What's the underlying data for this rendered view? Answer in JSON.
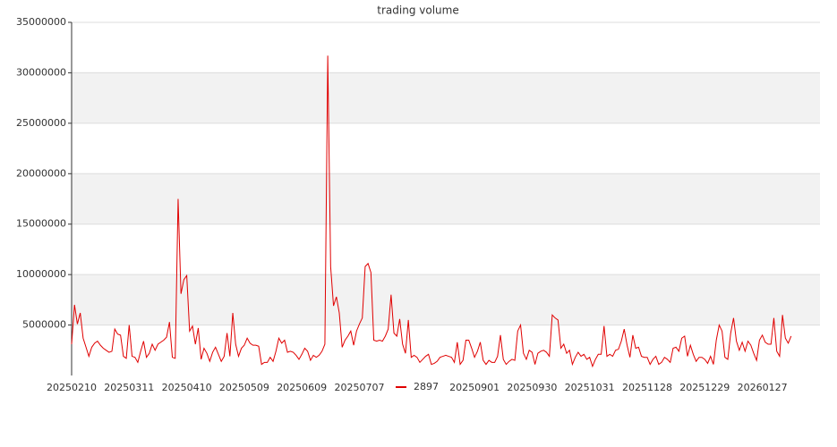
{
  "chart_data": {
    "type": "line",
    "title": "trading volume",
    "categories": [
      "20250210",
      null,
      null,
      null,
      null,
      null,
      null,
      null,
      null,
      null,
      null,
      null,
      null,
      null,
      null,
      null,
      null,
      null,
      null,
      null,
      "20250311",
      null,
      null,
      null,
      null,
      null,
      null,
      null,
      null,
      null,
      null,
      null,
      null,
      null,
      null,
      null,
      null,
      null,
      null,
      null,
      "20250410",
      null,
      null,
      null,
      null,
      null,
      null,
      null,
      null,
      null,
      null,
      null,
      null,
      null,
      null,
      null,
      null,
      null,
      null,
      null,
      "20250509",
      null,
      null,
      null,
      null,
      null,
      null,
      null,
      null,
      null,
      null,
      null,
      null,
      null,
      null,
      null,
      null,
      null,
      null,
      null,
      "20250609",
      null,
      null,
      null,
      null,
      null,
      null,
      null,
      null,
      null,
      null,
      null,
      null,
      null,
      null,
      null,
      null,
      null,
      null,
      null,
      "20250707",
      null,
      null,
      null,
      null,
      null,
      null,
      null,
      null,
      null,
      null,
      null,
      null,
      null,
      null,
      null,
      null,
      null,
      null,
      null,
      null,
      null,
      null,
      null,
      null,
      null,
      null,
      null,
      null,
      null,
      null,
      null,
      null,
      null,
      null,
      null,
      null,
      null,
      null,
      null,
      "20250901",
      null,
      null,
      null,
      null,
      null,
      null,
      null,
      null,
      null,
      null,
      null,
      null,
      null,
      null,
      null,
      null,
      null,
      null,
      null,
      "20250930",
      null,
      null,
      null,
      null,
      null,
      null,
      null,
      null,
      null,
      null,
      null,
      null,
      null,
      null,
      null,
      null,
      null,
      null,
      null,
      "20251031",
      null,
      null,
      null,
      null,
      null,
      null,
      null,
      null,
      null,
      null,
      null,
      null,
      null,
      null,
      null,
      null,
      null,
      null,
      null,
      "20251128",
      null,
      null,
      null,
      null,
      null,
      null,
      null,
      null,
      null,
      null,
      null,
      null,
      null,
      null,
      null,
      null,
      null,
      null,
      null,
      "20251229",
      null,
      null,
      null,
      null,
      null,
      null,
      null,
      null,
      null,
      null,
      null,
      null,
      null,
      null,
      null,
      null,
      null,
      null,
      null,
      "20260127",
      null,
      null,
      null,
      null,
      null,
      null,
      null,
      null,
      null,
      null
    ],
    "series": [
      {
        "name": "2897",
        "color": "#e00000",
        "values": [
          3100000,
          7000000,
          5100000,
          6200000,
          3700000,
          2800000,
          1900000,
          2800000,
          3200000,
          3400000,
          3000000,
          2700000,
          2500000,
          2300000,
          2400000,
          4600000,
          4100000,
          4000000,
          1900000,
          1700000,
          5000000,
          1900000,
          1800000,
          1300000,
          2400000,
          3400000,
          1800000,
          2200000,
          3100000,
          2500000,
          3100000,
          3300000,
          3500000,
          3800000,
          5300000,
          1800000,
          1700000,
          17500000,
          8100000,
          9500000,
          9900000,
          4400000,
          4900000,
          3100000,
          4700000,
          1600000,
          2700000,
          2200000,
          1400000,
          2300000,
          2800000,
          2100000,
          1400000,
          1900000,
          4200000,
          1900000,
          6200000,
          3100000,
          1900000,
          2700000,
          3000000,
          3700000,
          3200000,
          3000000,
          3000000,
          2900000,
          1100000,
          1300000,
          1300000,
          1800000,
          1400000,
          2400000,
          3700000,
          3200000,
          3500000,
          2300000,
          2400000,
          2300000,
          2000000,
          1600000,
          2100000,
          2700000,
          2400000,
          1500000,
          2000000,
          1800000,
          2000000,
          2400000,
          3100000,
          31700000,
          10800000,
          6900000,
          7800000,
          6200000,
          2800000,
          3500000,
          3900000,
          4400000,
          3000000,
          4400000,
          5100000,
          5700000,
          10800000,
          11100000,
          10200000,
          3500000,
          3400000,
          3500000,
          3400000,
          3900000,
          4600000,
          8000000,
          4200000,
          3900000,
          5600000,
          3100000,
          2200000,
          5500000,
          1800000,
          2000000,
          1800000,
          1300000,
          1600000,
          1900000,
          2100000,
          1100000,
          1200000,
          1400000,
          1800000,
          1900000,
          2000000,
          1900000,
          1800000,
          1300000,
          3300000,
          1100000,
          1500000,
          3500000,
          3500000,
          2700000,
          1800000,
          2400000,
          3300000,
          1500000,
          1100000,
          1500000,
          1300000,
          1300000,
          1900000,
          4000000,
          1600000,
          1100000,
          1400000,
          1600000,
          1500000,
          4400000,
          5000000,
          2200000,
          1600000,
          2500000,
          2300000,
          1100000,
          2200000,
          2400000,
          2500000,
          2300000,
          1900000,
          6000000,
          5700000,
          5500000,
          2700000,
          3100000,
          2200000,
          2500000,
          1100000,
          1800000,
          2300000,
          1900000,
          2100000,
          1600000,
          1800000,
          900000,
          1600000,
          2100000,
          2100000,
          4900000,
          1900000,
          2100000,
          1900000,
          2500000,
          2600000,
          3400000,
          4600000,
          3000000,
          1800000,
          4000000,
          2700000,
          2800000,
          1900000,
          1800000,
          1800000,
          1100000,
          1600000,
          1900000,
          1100000,
          1300000,
          1800000,
          1600000,
          1300000,
          2700000,
          2800000,
          2400000,
          3700000,
          3900000,
          1900000,
          3000000,
          2100000,
          1400000,
          1800000,
          1800000,
          1600000,
          1200000,
          1900000,
          1100000,
          3500000,
          5000000,
          4400000,
          1800000,
          1600000,
          4200000,
          5700000,
          3400000,
          2500000,
          3300000,
          2400000,
          3400000,
          3000000,
          2200000,
          1500000,
          3500000,
          4000000,
          3300000,
          3100000,
          3100000,
          5700000,
          2400000,
          1900000,
          6000000,
          3700000,
          3200000,
          3900000
        ]
      }
    ],
    "ylim": [
      0,
      35000000
    ],
    "yticks": [
      5000000,
      10000000,
      15000000,
      20000000,
      25000000,
      30000000,
      35000000
    ],
    "grid": true,
    "legend": "bottom"
  }
}
